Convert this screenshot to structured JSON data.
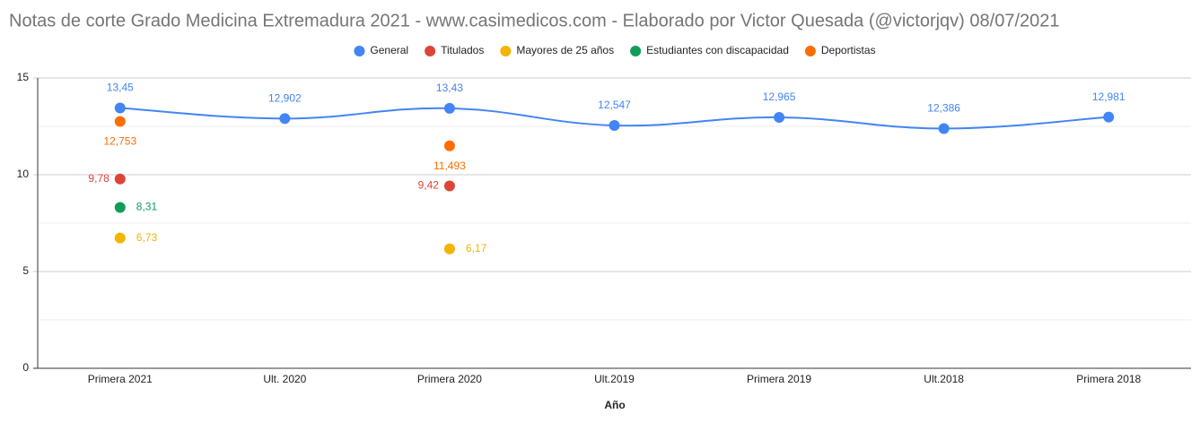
{
  "chart_data": {
    "type": "line",
    "title": "Notas de corte Grado Medicina Extremadura 2021 - www.casimedicos.com - Elaborado por Victor Quesada (@victorjqv)  08/07/2021",
    "x_label": "Año",
    "categories": [
      "Primera 2021",
      "Ult. 2020",
      "Primera 2020",
      "Ult.2019",
      "Primera 2019",
      "Ult.2018",
      "Primera 2018"
    ],
    "series": [
      {
        "name": "General",
        "color": "#4285f4",
        "values": [
          13.45,
          12.902,
          13.43,
          12.547,
          12.965,
          12.386,
          12.981
        ],
        "value_labels": [
          "13,45",
          "12,902",
          "13,43",
          "12,547",
          "12,965",
          "12,386",
          "12,981"
        ]
      },
      {
        "name": "Titulados",
        "color": "#db4437",
        "values": [
          9.78,
          null,
          9.42,
          null,
          null,
          null,
          null
        ],
        "value_labels": [
          "9,78",
          null,
          "9,42",
          null,
          null,
          null,
          null
        ]
      },
      {
        "name": "Mayores de 25 años",
        "color": "#f4b400",
        "values": [
          6.73,
          null,
          6.17,
          null,
          null,
          null,
          null
        ],
        "value_labels": [
          "6,73",
          null,
          "6,17",
          null,
          null,
          null,
          null
        ]
      },
      {
        "name": "Estudiantes con discapacidad",
        "color": "#0f9d58",
        "values": [
          8.31,
          null,
          null,
          null,
          null,
          null,
          null
        ],
        "value_labels": [
          "8,31",
          null,
          null,
          null,
          null,
          null,
          null
        ]
      },
      {
        "name": "Deportistas",
        "color": "#ff6d01",
        "values": [
          12.753,
          null,
          11.493,
          null,
          null,
          null,
          null
        ],
        "value_labels": [
          "12,753",
          null,
          "11,493",
          null,
          null,
          null,
          null
        ]
      }
    ],
    "ylim": [
      0,
      15
    ],
    "yticks": [
      0,
      5,
      10,
      15
    ],
    "minor_yticks": [
      2.5,
      7.5,
      12.5
    ],
    "grid": true,
    "legend": "top"
  }
}
